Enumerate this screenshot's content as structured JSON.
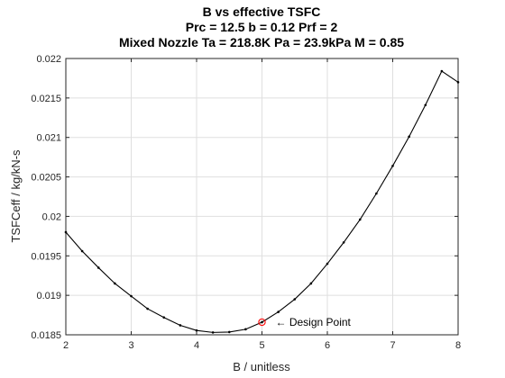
{
  "chart_data": {
    "type": "line",
    "title": [
      "B vs effective TSFC",
      "Prc = 12.5 b = 0.12 Prf = 2",
      "Mixed Nozzle Ta = 218.8K Pa = 23.9kPa M = 0.85"
    ],
    "xlabel": "B / unitless",
    "ylabel": "TSFCeff / kg/kN-s",
    "xlim": [
      2,
      8
    ],
    "ylim": [
      0.0185,
      0.022
    ],
    "xticks": [
      2,
      3,
      4,
      5,
      6,
      7,
      8
    ],
    "xtick_labels": [
      "2",
      "3",
      "4",
      "5",
      "6",
      "7",
      "8"
    ],
    "yticks": [
      0.0185,
      0.019,
      0.0195,
      0.02,
      0.0205,
      0.021,
      0.0215,
      0.022
    ],
    "ytick_labels": [
      "0.0185",
      "0.019",
      "0.0195",
      "0.02",
      "0.0205",
      "0.021",
      "0.0215",
      "0.022"
    ],
    "grid": true,
    "series": [
      {
        "color": "#000000",
        "marker": "dot",
        "x": [
          2.0,
          2.25,
          2.5,
          2.75,
          3.0,
          3.25,
          3.5,
          3.75,
          4.0,
          4.25,
          4.5,
          4.75,
          5.0,
          5.25,
          5.5,
          5.75,
          6.0,
          6.25,
          6.5,
          6.75,
          7.0,
          7.25,
          7.5,
          7.75,
          8.0
        ],
        "y": [
          0.0198,
          0.01956,
          0.01935,
          0.01915,
          0.01899,
          0.01883,
          0.01872,
          0.01862,
          0.018555,
          0.01853,
          0.018535,
          0.01857,
          0.01866,
          0.01879,
          0.01895,
          0.01915,
          0.0194,
          0.01967,
          0.01996,
          0.02029,
          0.02064,
          0.02101,
          0.02141,
          0.02184,
          0.0217
        ]
      }
    ],
    "annotations": [
      {
        "x": 5.0,
        "y": 0.01866,
        "marker": "circle",
        "color": "#ff0000",
        "text": "← Design Point"
      }
    ]
  }
}
